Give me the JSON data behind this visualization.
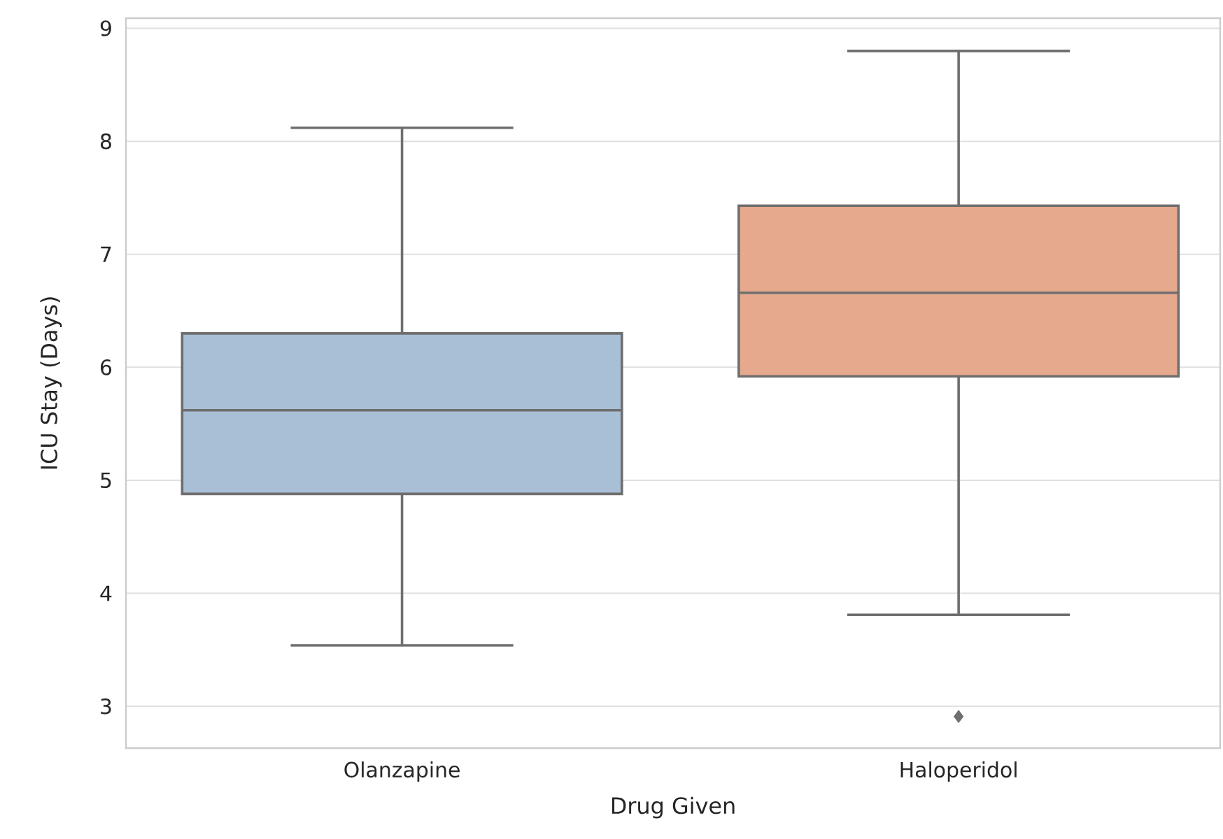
{
  "chart_data": {
    "type": "box",
    "categories": [
      "Olanzapine",
      "Haloperidol"
    ],
    "colors": [
      "#a9bfd6",
      "#e6a98e"
    ],
    "boxes": [
      {
        "low": 3.54,
        "q1": 4.88,
        "median": 5.62,
        "q3": 6.3,
        "high": 8.12
      },
      {
        "low": 3.81,
        "q1": 5.92,
        "median": 6.66,
        "q3": 7.43,
        "high": 8.8,
        "outliers": [
          2.91
        ]
      }
    ],
    "xlabel": "Drug Given",
    "ylabel": "ICU Stay (Days)",
    "ylim": [
      2.63,
      9.09
    ],
    "yticks": [
      3,
      4,
      5,
      6,
      7,
      8,
      9
    ],
    "grid": "y"
  }
}
